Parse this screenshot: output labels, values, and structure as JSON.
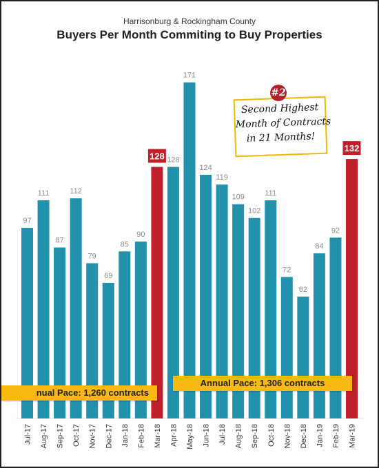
{
  "colors": {
    "bar": "#2291ac",
    "highlight": "#c0202a",
    "value_text": "#8a8a8a",
    "pace_box": "#f9b911",
    "note_border": "#f2b705"
  },
  "chart_data": {
    "type": "bar",
    "subtitle": "Harrisonburg & Rockingham County",
    "title": "Buyers Per Month Commiting to Buy Properties",
    "categories": [
      "Jul-17",
      "Aug-17",
      "Sep-17",
      "Oct-17",
      "Nov-17",
      "Dec-17",
      "Jan-18",
      "Feb-18",
      "Mar-18",
      "Apr-18",
      "May-18",
      "Jun-18",
      "Jul-18",
      "Aug-18",
      "Sep-18",
      "Oct-18",
      "Nov-18",
      "Dec-18",
      "Jan-19",
      "Feb-19",
      "Mar-19"
    ],
    "values": [
      97,
      111,
      87,
      112,
      79,
      69,
      85,
      90,
      128,
      128,
      171,
      124,
      119,
      109,
      102,
      111,
      72,
      62,
      84,
      92,
      132
    ],
    "highlighted": [
      "Mar-18",
      "Mar-19"
    ],
    "ylim": [
      0,
      180
    ],
    "grid": false,
    "annotations": {
      "pace_1": "nual Pace: 1,260 contracts",
      "pace_2": "Annual Pace: 1,306 contracts",
      "note_badge": "#2",
      "note_lines": [
        "Second Highest",
        "Month of Contracts",
        "in 21 Months!"
      ]
    }
  }
}
